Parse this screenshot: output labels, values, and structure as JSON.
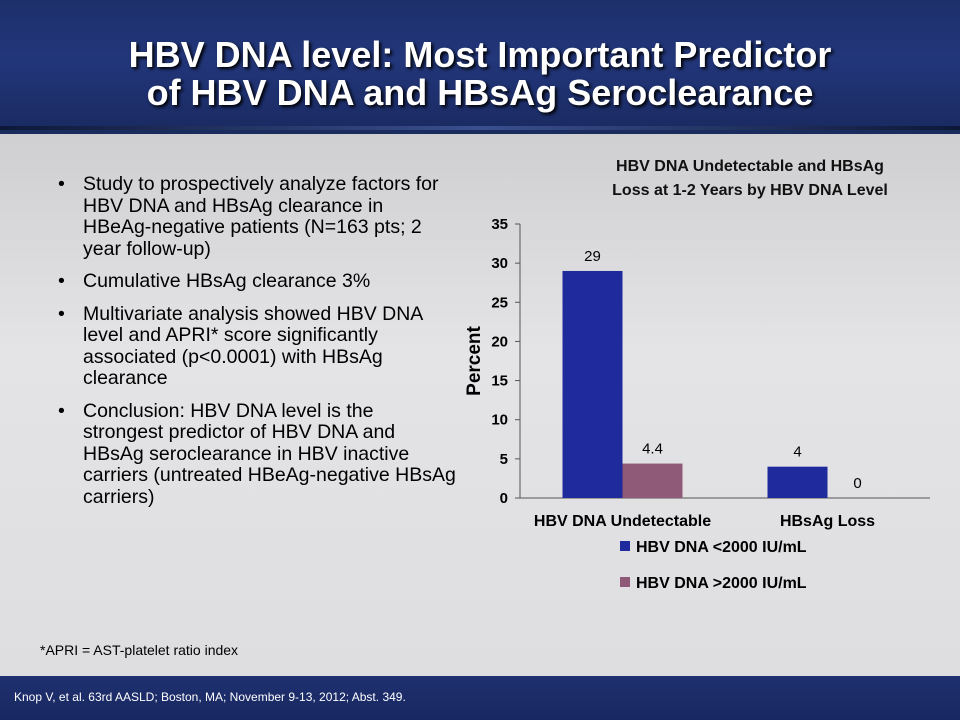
{
  "header": {
    "title_line1": "HBV DNA level: Most Important Predictor",
    "title_line2": "of HBV DNA and HBsAg Seroclearance"
  },
  "bullets": [
    {
      "text": "Study to prospectively analyze factors for HBV DNA and HBsAg clearance in HBeAg-negative patients  (N=163 pts; 2 year follow-up)"
    },
    {
      "text": "Cumulative HBsAg clearance 3%"
    },
    {
      "text": "Multivariate analysis showed HBV DNA level and APRI* score significantly associated (p<0.0001) with HBsAg clearance"
    },
    {
      "text": "Conclusion: HBV DNA level is the strongest predictor of HBV DNA and HBsAg seroclearance in HBV inactive carriers (untreated HBeAg-negative HBsAg carriers)"
    }
  ],
  "footnote": "*APRI = AST-platelet ratio index",
  "citation": "Knop V, et al. 63rd AASLD; Boston, MA; November 9-13, 2012; Abst. 349.",
  "chart_title_line1": "HBV DNA Undetectable and HBsAg",
  "chart_title_line2": "Loss  at 1-2 Years by HBV DNA Level",
  "chart_data": {
    "type": "bar",
    "title": "HBV DNA Undetectable and HBsAg Loss  at 1-2 Years by HBV DNA Level",
    "categories": [
      "HBV DNA Undetectable",
      "HBsAg Loss"
    ],
    "series": [
      {
        "name": "HBV DNA <2000 IU/mL",
        "values": [
          29,
          4
        ],
        "labels": [
          "29",
          "4"
        ],
        "color": "#1f2a9c"
      },
      {
        "name": "HBV DNA >2000 IU/mL",
        "values": [
          4.4,
          0
        ],
        "labels": [
          "4.4",
          "0"
        ],
        "color": "#8e5a78"
      }
    ],
    "ylabel": "Percent",
    "xlabel": "",
    "ylim": [
      0,
      35
    ],
    "yticks": [
      0,
      5,
      10,
      15,
      20,
      25,
      30,
      35
    ],
    "grid": false,
    "legend": "bottom"
  }
}
